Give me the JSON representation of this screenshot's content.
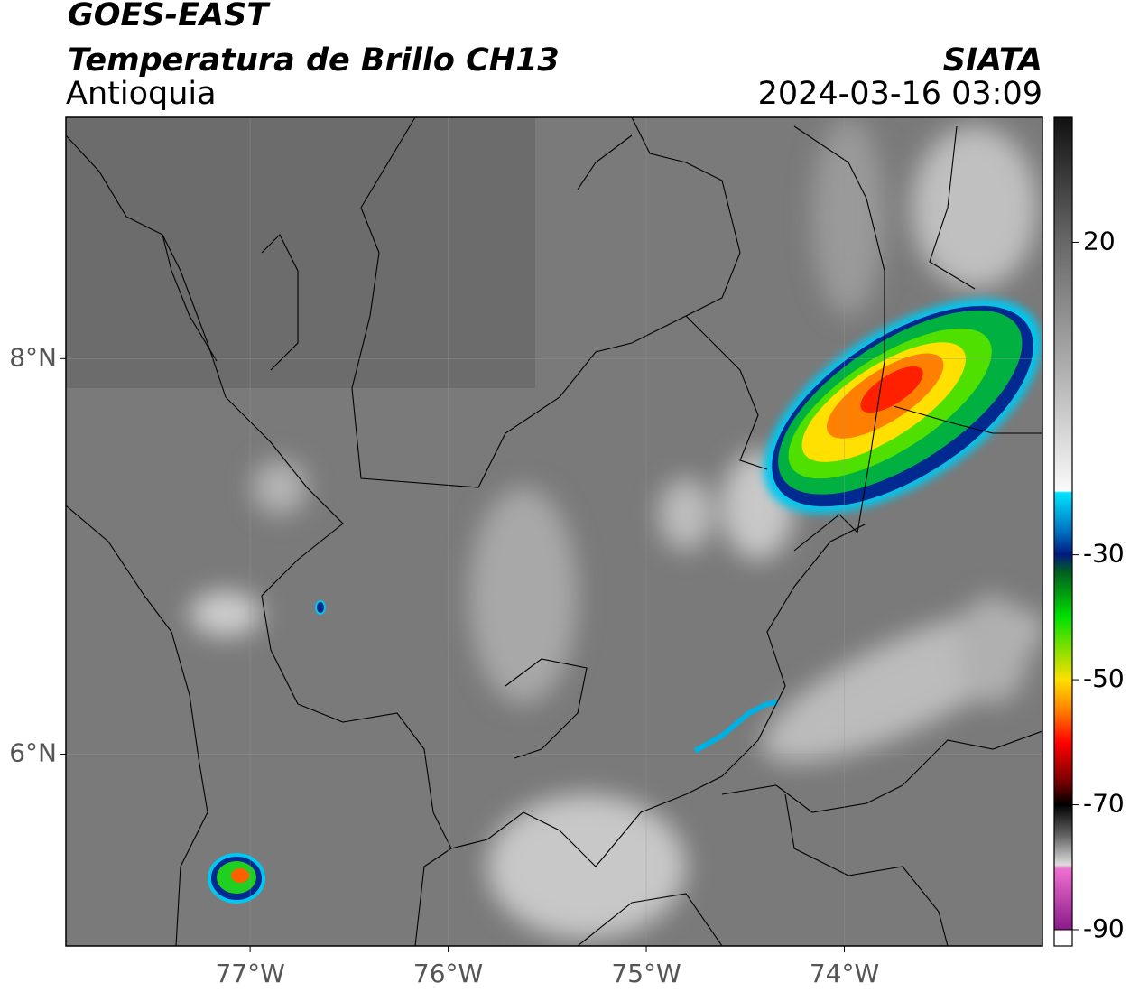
{
  "header": {
    "satellite": "GOES-EAST",
    "product": "Temperatura de Brillo CH13",
    "region": "Antioquia",
    "source": "SIATA",
    "datetime": "2024-03-16 03:09"
  },
  "map": {
    "xlim": [
      -77.93,
      -73.0
    ],
    "ylim": [
      5.03,
      9.22
    ],
    "xticks": [
      {
        "value": -77,
        "label": "77°W"
      },
      {
        "value": -76,
        "label": "76°W"
      },
      {
        "value": -75,
        "label": "75°W"
      },
      {
        "value": -74,
        "label": "74°W"
      }
    ],
    "yticks": [
      {
        "value": 6,
        "label": "6°N"
      },
      {
        "value": 8,
        "label": "8°N"
      }
    ],
    "grid": true
  },
  "colorbar": {
    "clim": [
      -90,
      40
    ],
    "ticks": [
      -90,
      -70,
      -50,
      -30,
      20
    ]
  }
}
